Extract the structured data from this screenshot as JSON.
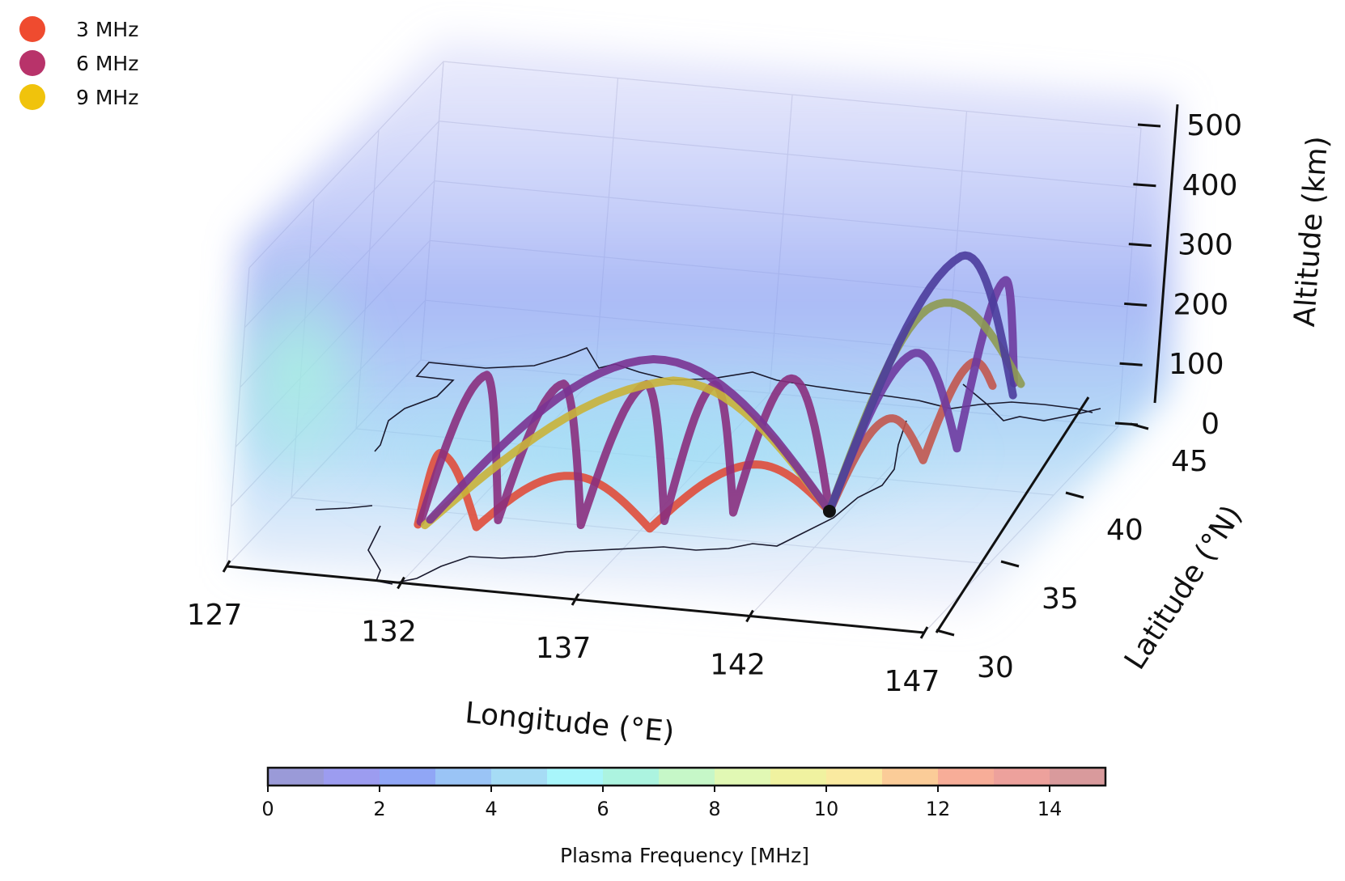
{
  "chart_data": {
    "type": "line",
    "subtype": "3d-ray-trace",
    "x_axis": {
      "label": "Longitude (°E)",
      "ticks": [
        127,
        132,
        137,
        142,
        147
      ],
      "range": [
        127,
        147
      ]
    },
    "y_axis": {
      "label": "Latitude (°N)",
      "ticks": [
        30,
        35,
        40,
        45
      ],
      "range": [
        30,
        45
      ]
    },
    "z_axis": {
      "label": "Altitude (km)",
      "ticks": [
        0,
        100,
        200,
        300,
        400,
        500
      ],
      "range": [
        0,
        500
      ]
    },
    "legend": {
      "placement": "top-left",
      "entries": [
        {
          "label": "3 MHz",
          "color": "#ef4b2f"
        },
        {
          "label": "6 MHz",
          "color": "#b8336a"
        },
        {
          "label": "9 MHz",
          "color": "#f0c30c"
        }
      ]
    },
    "colorbar": {
      "label": "Plasma Frequency [MHz]",
      "ticks": [
        0,
        2,
        4,
        6,
        8,
        10,
        12,
        14
      ],
      "range": [
        0,
        15
      ],
      "colors": [
        "#9a9ad8",
        "#9c9cf0",
        "#90a6f6",
        "#9ac4f6",
        "#a6dcf5",
        "#a8f6fb",
        "#acf4e0",
        "#c6f7c8",
        "#e1f8b4",
        "#f0f2a0",
        "#faeaa0",
        "#fbcc98",
        "#f7ad98",
        "#eda19c",
        "#d99a9c"
      ]
    },
    "transmitter": {
      "lon": 141.5,
      "lat": 37.5,
      "alt": 0
    },
    "series": [
      {
        "name": "3 MHz",
        "color": "#e04d3a",
        "points": [
          {
            "lon": 141.5,
            "lat": 37.5,
            "alt": 0
          },
          {
            "lon": 139.5,
            "lat": 36.5,
            "alt": 90
          },
          {
            "lon": 137.2,
            "lat": 35.2,
            "alt": 0
          },
          {
            "lon": 135.0,
            "lat": 34.6,
            "alt": 90
          },
          {
            "lon": 132.6,
            "lat": 34.2,
            "alt": 0
          },
          {
            "lon": 131.3,
            "lat": 34.5,
            "alt": 110
          },
          {
            "lon": 131.0,
            "lat": 34.0,
            "alt": 0
          }
        ]
      },
      {
        "name": "3 MHz",
        "color": "#c2574e",
        "points": [
          {
            "lon": 141.5,
            "lat": 37.5,
            "alt": 0
          },
          {
            "lon": 142.2,
            "lat": 39.5,
            "alt": 110
          },
          {
            "lon": 142.7,
            "lat": 41.5,
            "alt": 0
          },
          {
            "lon": 143.2,
            "lat": 43.5,
            "alt": 120
          },
          {
            "lon": 143.5,
            "lat": 44.5,
            "alt": 60
          }
        ]
      },
      {
        "name": "6 MHz",
        "color": "#8a2f7e",
        "points": [
          {
            "lon": 141.5,
            "lat": 37.5,
            "alt": 0
          },
          {
            "lon": 140.2,
            "lat": 37.3,
            "alt": 220
          },
          {
            "lon": 139.0,
            "lat": 36.8,
            "alt": 0
          },
          {
            "lon": 138.2,
            "lat": 36.8,
            "alt": 210
          },
          {
            "lon": 137.4,
            "lat": 35.8,
            "alt": 0
          },
          {
            "lon": 136.4,
            "lat": 36.4,
            "alt": 210
          },
          {
            "lon": 135.3,
            "lat": 35.0,
            "alt": 0
          },
          {
            "lon": 134.2,
            "lat": 35.9,
            "alt": 210
          },
          {
            "lon": 133.0,
            "lat": 34.8,
            "alt": 0
          },
          {
            "lon": 132.1,
            "lat": 35.6,
            "alt": 220
          },
          {
            "lon": 131.0,
            "lat": 34.2,
            "alt": 0
          }
        ]
      },
      {
        "name": "6 MHz",
        "color": "#6e3aa0",
        "points": [
          {
            "lon": 141.5,
            "lat": 37.5,
            "alt": 0
          },
          {
            "lon": 142.5,
            "lat": 40.5,
            "alt": 200
          },
          {
            "lon": 143.3,
            "lat": 42.5,
            "alt": 0
          },
          {
            "lon": 143.8,
            "lat": 44.0,
            "alt": 250
          },
          {
            "lon": 144.0,
            "lat": 44.8,
            "alt": 60
          }
        ]
      },
      {
        "name": "9 MHz",
        "color": "#c9b23a",
        "points": [
          {
            "lon": 141.5,
            "lat": 37.5,
            "alt": 0
          },
          {
            "lon": 137.0,
            "lat": 36.8,
            "alt": 210
          },
          {
            "lon": 131.2,
            "lat": 34.0,
            "alt": 0
          }
        ]
      },
      {
        "name": "9 MHz",
        "color": "#8e9a52",
        "points": [
          {
            "lon": 141.5,
            "lat": 37.5,
            "alt": 0
          },
          {
            "lon": 142.8,
            "lat": 41.0,
            "alt": 270
          },
          {
            "lon": 144.2,
            "lat": 44.8,
            "alt": 60
          }
        ]
      },
      {
        "name": "6 MHz",
        "color": "#7a3392",
        "points": [
          {
            "lon": 141.5,
            "lat": 37.5,
            "alt": 0
          },
          {
            "lon": 136.5,
            "lat": 36.5,
            "alt": 250
          },
          {
            "lon": 131.2,
            "lat": 34.4,
            "alt": 0
          }
        ]
      },
      {
        "name": "6 MHz",
        "color": "#4b3c9c",
        "points": [
          {
            "lon": 141.5,
            "lat": 37.5,
            "alt": 0
          },
          {
            "lon": 143.0,
            "lat": 42.5,
            "alt": 320
          },
          {
            "lon": 144.0,
            "lat": 44.8,
            "alt": 40
          }
        ]
      }
    ]
  }
}
